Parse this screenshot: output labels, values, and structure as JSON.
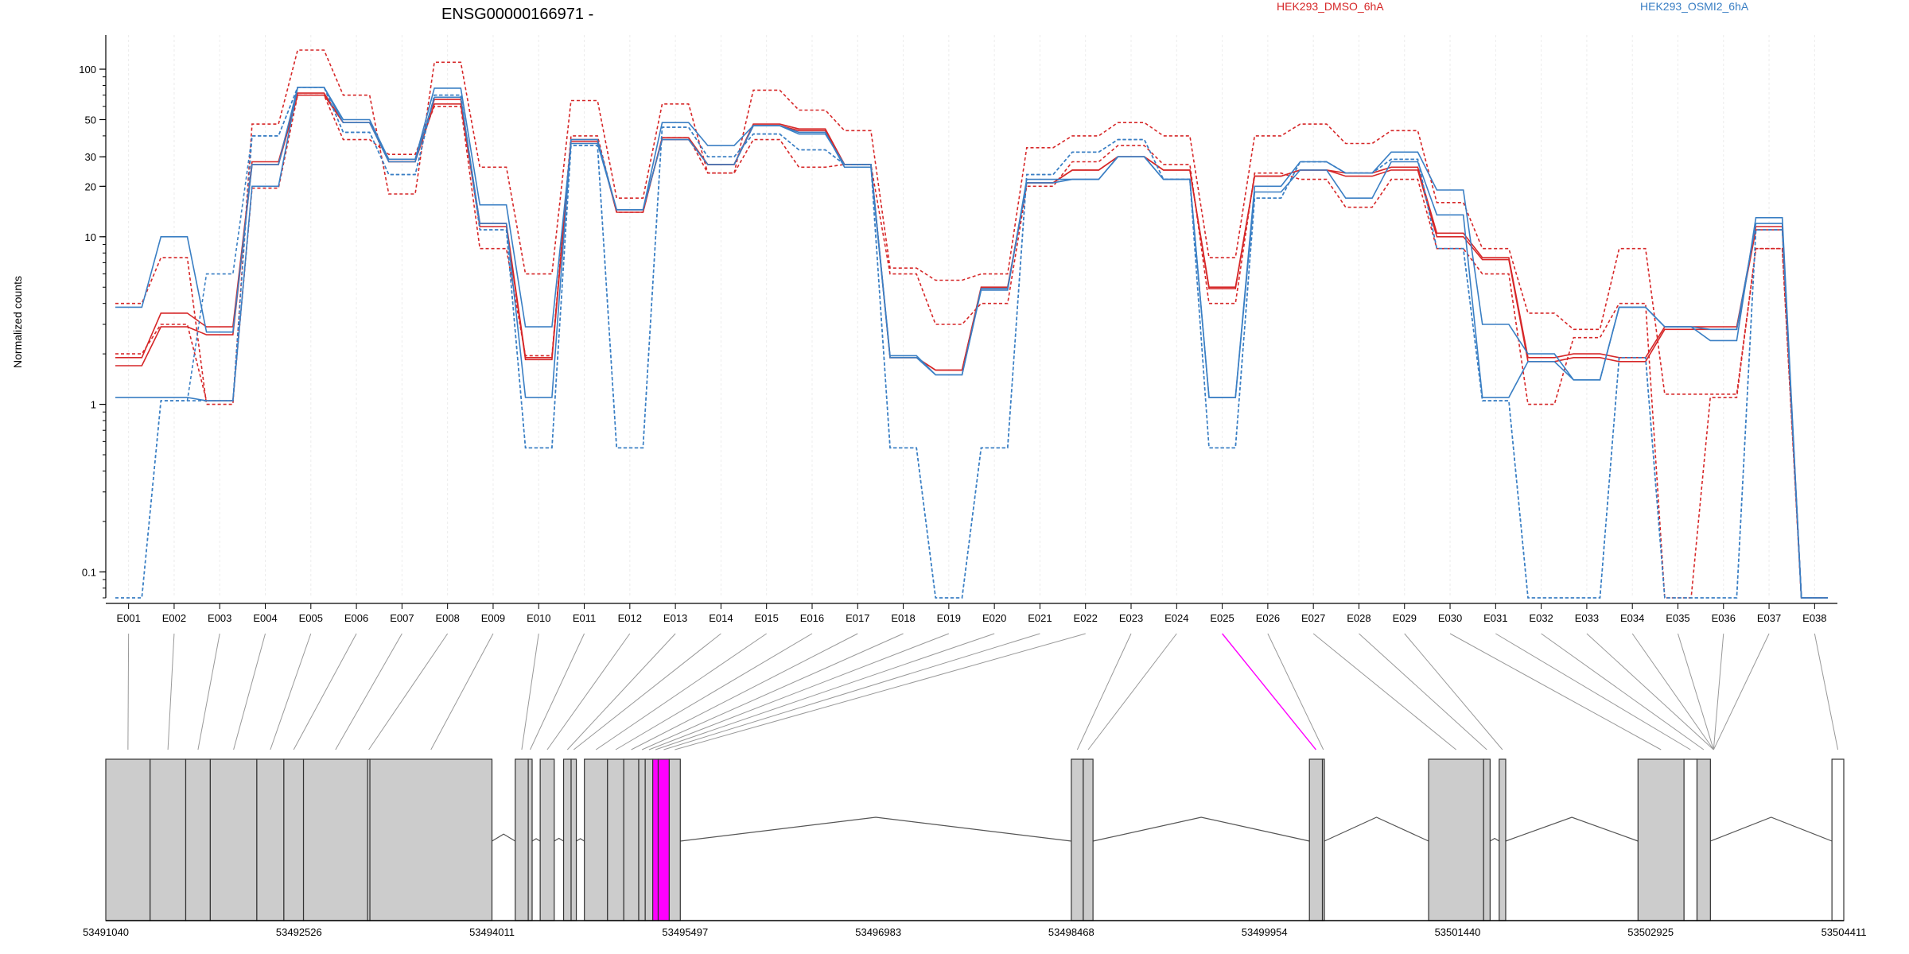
{
  "chart_data": {
    "type": "line",
    "title": "ENSG00000166971 -",
    "ylabel": "Normalized counts",
    "xlabel": "",
    "yscale": "log",
    "ylim": [
      0.07,
      160
    ],
    "yticks": [
      {
        "value": 0.1,
        "label": "0.1"
      },
      {
        "value": 1,
        "label": "1"
      },
      {
        "value": 10,
        "label": "10"
      },
      {
        "value": 20,
        "label": "20"
      },
      {
        "value": 30,
        "label": "30"
      },
      {
        "value": 50,
        "label": "50"
      },
      {
        "value": 100,
        "label": "100"
      }
    ],
    "grid": "vertical",
    "legend": "top",
    "categories": [
      "E001",
      "E002",
      "E003",
      "E004",
      "E005",
      "E006",
      "E007",
      "E008",
      "E009",
      "E010",
      "E011",
      "E012",
      "E013",
      "E014",
      "E015",
      "E016",
      "E017",
      "E018",
      "E019",
      "E020",
      "E021",
      "E022",
      "E023",
      "E024",
      "E025",
      "E026",
      "E027",
      "E028",
      "E029",
      "E030",
      "E031",
      "E032",
      "E033",
      "E034",
      "E035",
      "E036",
      "E037",
      "E038"
    ],
    "groups": [
      {
        "name": "HEK293_DMSO_6hA",
        "color": "#d62728"
      },
      {
        "name": "HEK293_OSMI2_6hA",
        "color": "#3a7fc4"
      }
    ],
    "series": [
      {
        "group": 0,
        "style": "solid",
        "values": [
          1.9,
          3.5,
          2.9,
          28,
          72,
          48,
          29,
          66,
          12,
          1.9,
          38,
          14,
          39,
          27,
          47,
          44,
          27,
          1.9,
          1.6,
          5,
          21,
          25,
          30,
          25,
          5,
          23,
          25,
          24,
          26,
          10.5,
          7.5,
          1.9,
          2,
          1.9,
          2.9,
          2.9,
          11.5,
          0.07
        ]
      },
      {
        "group": 0,
        "style": "solid",
        "values": [
          1.7,
          2.9,
          2.6,
          27,
          70,
          48,
          28,
          62,
          11.5,
          1.85,
          37,
          14.5,
          38,
          27,
          46,
          43,
          27,
          1.9,
          1.6,
          4.9,
          21,
          25,
          30,
          25,
          4.9,
          23,
          25,
          23,
          25,
          10,
          7.3,
          1.8,
          1.9,
          1.8,
          2.8,
          2.8,
          11,
          0.07
        ]
      },
      {
        "group": 0,
        "style": "dashed",
        "values": [
          4,
          7.5,
          1,
          47,
          130,
          70,
          18,
          110,
          26,
          6,
          65,
          17,
          62,
          24,
          75,
          57,
          43,
          6.5,
          5.5,
          6,
          34,
          40,
          48,
          40,
          7.5,
          40,
          47,
          36,
          43,
          16,
          8.5,
          3.5,
          2.8,
          8.5,
          1.15,
          1.15,
          8.5,
          0.07
        ]
      },
      {
        "group": 0,
        "style": "dashed",
        "values": [
          2,
          3,
          1.05,
          19.5,
          70,
          38,
          31,
          60,
          8.5,
          1.95,
          40,
          14,
          39,
          24,
          38,
          26,
          27,
          6,
          3,
          4,
          20,
          28,
          35,
          27,
          4,
          24,
          22,
          15,
          22,
          8.5,
          6,
          1,
          2.5,
          4,
          0.07,
          1.1,
          8.5,
          0.07
        ]
      },
      {
        "group": 1,
        "style": "solid",
        "values": [
          1.1,
          1.1,
          1.05,
          20,
          78,
          48,
          28,
          68,
          12,
          1.1,
          38,
          14.5,
          38,
          27,
          46,
          42,
          26,
          1.9,
          1.5,
          4.9,
          21,
          22,
          30,
          22,
          1.1,
          18.5,
          25,
          17,
          28,
          13.5,
          1.1,
          1.8,
          1.4,
          3.8,
          2.9,
          2.4,
          13,
          0.07
        ]
      },
      {
        "group": 1,
        "style": "solid",
        "values": [
          3.8,
          10,
          2.7,
          27,
          78,
          50,
          29,
          77,
          15.5,
          2.9,
          36,
          14.5,
          48,
          35,
          46,
          41,
          27,
          1.95,
          1.5,
          4.8,
          22,
          22,
          30,
          22,
          1.1,
          20,
          28,
          24,
          32,
          19,
          3,
          2,
          1.4,
          3.8,
          2.9,
          2.8,
          12,
          0.07
        ]
      },
      {
        "group": 1,
        "style": "dashed",
        "values": [
          0.07,
          1.05,
          6,
          40,
          78,
          42,
          23.5,
          70,
          11,
          0.55,
          35,
          0.55,
          45,
          30,
          41,
          33,
          27,
          0.55,
          0.07,
          0.55,
          23.5,
          32,
          38,
          22,
          0.55,
          17,
          28,
          24,
          29,
          8.5,
          1.05,
          0.07,
          0.07,
          1.9,
          0.07,
          0.07,
          11,
          0.07
        ]
      },
      {
        "group": 1,
        "style": "dashed",
        "values": [
          0.07,
          1.05,
          1.05,
          40,
          78,
          42,
          23.5,
          70,
          11,
          0.55,
          35,
          0.55,
          45,
          30,
          41,
          33,
          27,
          0.55,
          0.07,
          0.55,
          23.5,
          32,
          38,
          22,
          0.55,
          17,
          28,
          24,
          29,
          8.5,
          1.05,
          0.07,
          0.07,
          1.9,
          0.07,
          0.07,
          11,
          0.07
        ]
      }
    ],
    "genomic_axis": {
      "ticks": [
        "53491040",
        "53492526",
        "53494011",
        "53495497",
        "53496983",
        "53498468",
        "53499954",
        "53501440",
        "53502925",
        "53504411"
      ]
    },
    "highlighted_exon": "E025",
    "highlight_color": "#ff00ff"
  }
}
